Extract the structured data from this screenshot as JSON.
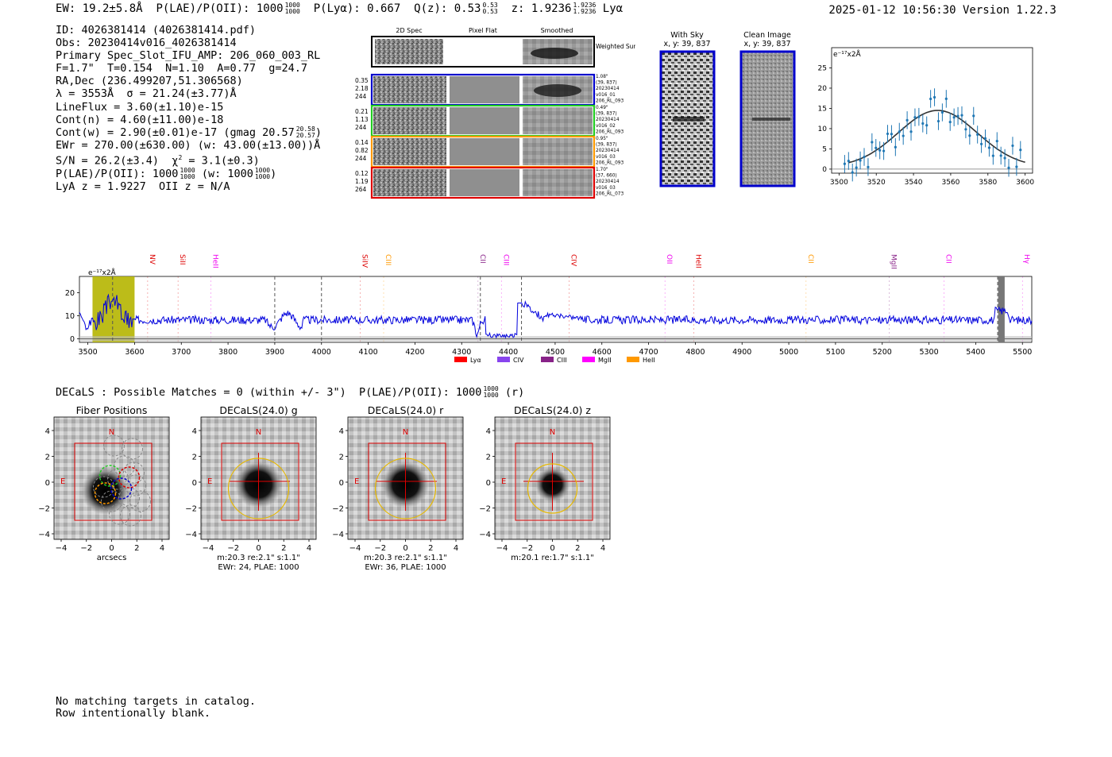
{
  "header": {
    "ew": "EW: 19.2±5.8Å",
    "plae_label": "P(LAE)/P(OII): 1000",
    "plae_sup": "1000",
    "plae_sub": "1000",
    "plya": "P(Lyα): 0.667",
    "qz": "Q(z): 0.53",
    "qz_sup": "0.53",
    "qz_sub": "0.53",
    "z": "z: 1.9236",
    "z_sup": "1.9236",
    "z_sub": "1.9236",
    "z_line": "Lyα",
    "timestamp": "2025-01-12 10:56:30",
    "version": "Version 1.22.3"
  },
  "info": {
    "id": "ID: 4026381414 (4026381414.pdf)",
    "obs": "Obs: 20230414v016_4026381414",
    "primary": "Primary Spec_Slot_IFU_AMP: 206_060_003_RL",
    "fibers": "F=1.7\"  T=0.154  N=1.10  A=0.77  g=24.7",
    "radec": "RA,Dec (236.499207,51.306568)",
    "lambda": "λ = 3553Å  σ = 21.24(±3.77)Å",
    "lineflux": "LineFlux = 3.60(±1.10)e-15",
    "contn": "Cont(n) = 4.60(±11.00)e-18",
    "contw": "Cont(w) = 2.90(±0.01)e-17 (gmag 20.57",
    "contw_sup": "20.58",
    "contw_sub": "20.57",
    "contw_end": ")",
    "ewr": "EWr = 270.00(±630.00) (w: 43.00(±13.00))Å",
    "sn": "S/N = 26.2(±3.4)  χ",
    "sn_sup": "2",
    "sn_end": " = 3.1(±0.3)",
    "plae": "P(LAE)/P(OII): 1000",
    "plae_sup": "1000",
    "plae_sub": "1000",
    "plae_w": " (w: 1000",
    "plae_w_sup": "1000",
    "plae_w_sub": "1000",
    "plae_w_end": ")",
    "lyaz": "LyA z = 1.9227  OII z = N/A"
  },
  "cutouts": {
    "headers": [
      "2D Spec",
      "Pixel Flat",
      "Smoothed"
    ],
    "weighted": "Weighted Sum",
    "rows": [
      {
        "vals": [
          "0.35",
          "2.18",
          "244"
        ],
        "meta": [
          "1.08\"",
          "(39, 837)",
          "20230414",
          "v016_01",
          "206_RL_093"
        ],
        "color": "#0000cc"
      },
      {
        "vals": [
          "0.21",
          "1.13",
          "244"
        ],
        "meta": [
          "0.49\"",
          "(39, 837)",
          "20230414",
          "v016_02",
          "206_RL_093"
        ],
        "color": "#22cc22"
      },
      {
        "vals": [
          "0.14",
          "0.82",
          "244"
        ],
        "meta": [
          "0.95\"",
          "(39, 837)",
          "20230414",
          "v016_03",
          "206_RL_093"
        ],
        "color": "#ff9900"
      },
      {
        "vals": [
          "0.12",
          "1.19",
          "264"
        ],
        "meta": [
          "1.70\"",
          "(37, 660)",
          "20230414",
          "v016_03",
          "206_RL_073"
        ],
        "color": "#dd0000"
      }
    ]
  },
  "sky": {
    "with_sky": "With Sky",
    "with_sky_xy": "x, y: 39, 837",
    "clean": "Clean Image",
    "clean_xy": "x, y: 39, 837"
  },
  "zoom_chart": {
    "type": "scatter",
    "ylabel": "e⁻¹⁷x2Å",
    "x_ticks": [
      "3500",
      "3520",
      "3540",
      "3560",
      "3580",
      "3600"
    ],
    "y_ticks": [
      "0",
      "5",
      "10",
      "15",
      "20",
      "25"
    ],
    "xlim": [
      3496,
      3604
    ],
    "ylim": [
      -1,
      30
    ]
  },
  "chart_data": {
    "type": "line",
    "title": "",
    "ylabel": "e⁻¹⁷x2Å",
    "xlim": [
      3482,
      5520
    ],
    "ylim": [
      -1.5,
      27
    ],
    "x_ticks": [
      3500,
      3600,
      3700,
      3800,
      3900,
      4000,
      4100,
      4200,
      4300,
      4400,
      4500,
      4600,
      4700,
      4800,
      4900,
      5000,
      5100,
      5200,
      5300,
      5400,
      5500
    ],
    "y_ticks": [
      0,
      10,
      20
    ],
    "lines": [
      {
        "name": "NV",
        "x": 3628,
        "color": "#dd0000"
      },
      {
        "name": "SiII",
        "x": 3693,
        "color": "#dd0000"
      },
      {
        "name": "HeII",
        "x": 3763,
        "color": "#ee00ee"
      },
      {
        "name": "SiIV",
        "x": 4083,
        "color": "#dd0000"
      },
      {
        "name": "CIII",
        "x": 4133,
        "color": "#ff9900"
      },
      {
        "name": "CII",
        "x": 4335,
        "color": "#882288"
      },
      {
        "name": "CIII",
        "x": 4385,
        "color": "#ee00ee"
      },
      {
        "name": "CIV",
        "x": 4530,
        "color": "#dd0000"
      },
      {
        "name": "OII",
        "x": 4735,
        "color": "#ee00ee"
      },
      {
        "name": "HeII",
        "x": 4797,
        "color": "#dd0000"
      },
      {
        "name": "CII",
        "x": 5037,
        "color": "#ff9900"
      },
      {
        "name": "MgII",
        "x": 5215,
        "color": "#882288"
      },
      {
        "name": "CII",
        "x": 5332,
        "color": "#ee00ee"
      },
      {
        "name": "Hγ",
        "x": 5500,
        "color": "#ee00ee"
      }
    ],
    "dashed_x": [
      3553,
      3900,
      4000,
      4340,
      4428,
      5447
    ],
    "legend": [
      {
        "label": "Lyα",
        "color": "#ff0000"
      },
      {
        "label": "CIV",
        "color": "#8844ee"
      },
      {
        "label": "CIII",
        "color": "#882288"
      },
      {
        "label": "MgII",
        "color": "#ff00ff"
      },
      {
        "label": "HeII",
        "color": "#ff9900"
      }
    ]
  },
  "decals": {
    "line": "DECaLS : Possible Matches = 0 (within +/- 3\")  P(LAE)/P(OII): 1000",
    "line_sup": "1000",
    "line_sub": "1000",
    "line_end": " (r)",
    "panels": [
      {
        "title": "Fiber Positions",
        "caption1": "arcsecs",
        "caption2": ""
      },
      {
        "title": "DECaLS(24.0) g",
        "caption1": "m:20.3  re:2.1\"  s:1.1\"",
        "caption2": "EWr: 24, PLAE: 1000"
      },
      {
        "title": "DECaLS(24.0) r",
        "caption1": "m:20.3  re:2.1\"  s:1.1\"",
        "caption2": "EWr: 36, PLAE: 1000"
      },
      {
        "title": "DECaLS(24.0) z",
        "caption1": "m:20.1  re:1.7\"  s:1.1\"",
        "caption2": ""
      }
    ],
    "axis_ticks_x": [
      "−4",
      "−2",
      "0",
      "2",
      "4"
    ],
    "axis_ticks_y": [
      "4",
      "2",
      "0",
      "−2",
      "−4"
    ],
    "north": "N",
    "east": "E"
  },
  "footer": {
    "line1": "No matching targets in catalog.",
    "line2": "Row intentionally blank."
  }
}
